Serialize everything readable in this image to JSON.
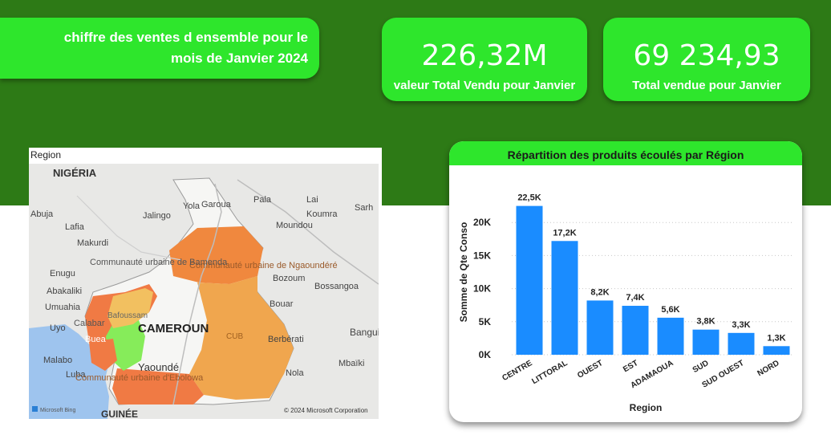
{
  "header": {
    "title_line1": "chiffre des ventes d ensemble pour le",
    "title_line2": "mois de Janvier 2024"
  },
  "kpis": [
    {
      "value": "226,32M",
      "label": "valeur Total Vendu pour Janvier"
    },
    {
      "value": "69 234,93",
      "label": "Total vendue pour Janvier"
    }
  ],
  "map": {
    "title": "Region",
    "country_label": "CAMEROUN",
    "place_labels": [
      "NIGÉRIA",
      "Abuja",
      "Lafia",
      "Makurdi",
      "Jalingo",
      "Yola",
      "Garoua",
      "Pala",
      "Lai",
      "Koumra",
      "Sarh",
      "Moundou",
      "Enugu",
      "Abakaliki",
      "Umuahia",
      "Uyo",
      "Calabar",
      "Buea",
      "Bafoussam",
      "Malabo",
      "Luba",
      "Yaoundé",
      "Bozoum",
      "Bossangoa",
      "Bouar",
      "Bangui",
      "Berbérati",
      "Nola",
      "Mbaïki",
      "CUB",
      "GUINÉE"
    ],
    "region_labels": [
      "Communauté urbaine de Bamenda",
      "Communauté urbaine de Ngaoundéré",
      "Communauté urbaine d'Ebolowa"
    ],
    "brand": "Microsoft Bing",
    "copyright": "© 2024 Microsoft Corporation"
  },
  "chart_data": {
    "type": "bar",
    "title": "Répartition des produits écoulés par Région",
    "xlabel": "Region",
    "ylabel": "Somme de Qte Conso",
    "categories": [
      "CENTRE",
      "LITTORAL",
      "OUEST",
      "EST",
      "ADAMAOUA",
      "SUD",
      "SUD OUEST",
      "NORD"
    ],
    "values": [
      22500,
      17200,
      8200,
      7400,
      5600,
      3800,
      3300,
      1300
    ],
    "data_labels": [
      "22,5K",
      "17,2K",
      "8,2K",
      "7,4K",
      "5,6K",
      "3,8K",
      "3,3K",
      "1,3K"
    ],
    "yticks": [
      0,
      5000,
      10000,
      15000,
      20000
    ],
    "ytick_labels": [
      "0K",
      "5K",
      "10K",
      "15K",
      "20K"
    ],
    "ylim": [
      0,
      25000
    ],
    "grid": true,
    "bar_color": "#1a8cff"
  }
}
